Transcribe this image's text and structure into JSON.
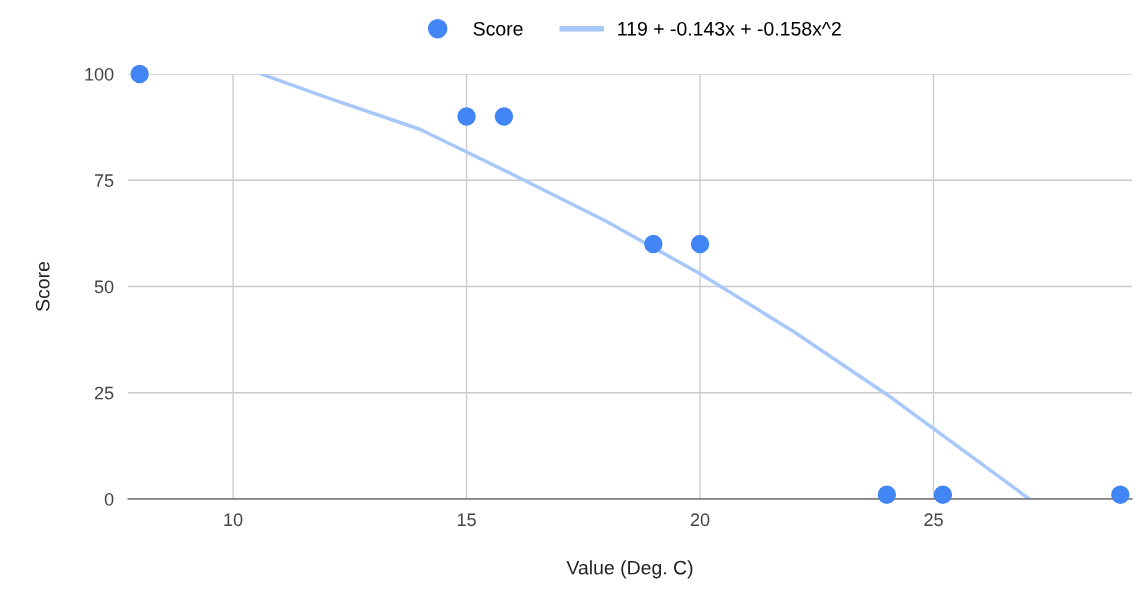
{
  "chart_data": {
    "type": "scatter",
    "xlabel": "Value (Deg. C)",
    "ylabel": "Score",
    "xlim": [
      7.75,
      29.25
    ],
    "xticks": [
      10,
      15,
      20,
      25
    ],
    "ylim": [
      0,
      100
    ],
    "yticks": [
      0,
      25,
      50,
      75,
      100
    ],
    "grid": true,
    "legend": "top",
    "marker": "circle",
    "series": [
      {
        "name": "Score",
        "color": "#4285f4",
        "x": [
          8,
          15,
          15.8,
          19,
          20,
          24,
          25.2,
          29
        ],
        "values": [
          100,
          90,
          90,
          60,
          60,
          1,
          1,
          1
        ]
      },
      {
        "name": "119 + -0.143x + -0.158x^2",
        "type": "line",
        "color": "#a8c7fa",
        "marker": "none",
        "x": [
          10.6,
          12,
          14,
          16,
          18,
          20,
          22,
          24,
          26,
          27.05
        ],
        "values": [
          100,
          94.5,
          87,
          76.3,
          65.3,
          53,
          39.4,
          24.6,
          8.5,
          0
        ]
      }
    ]
  }
}
